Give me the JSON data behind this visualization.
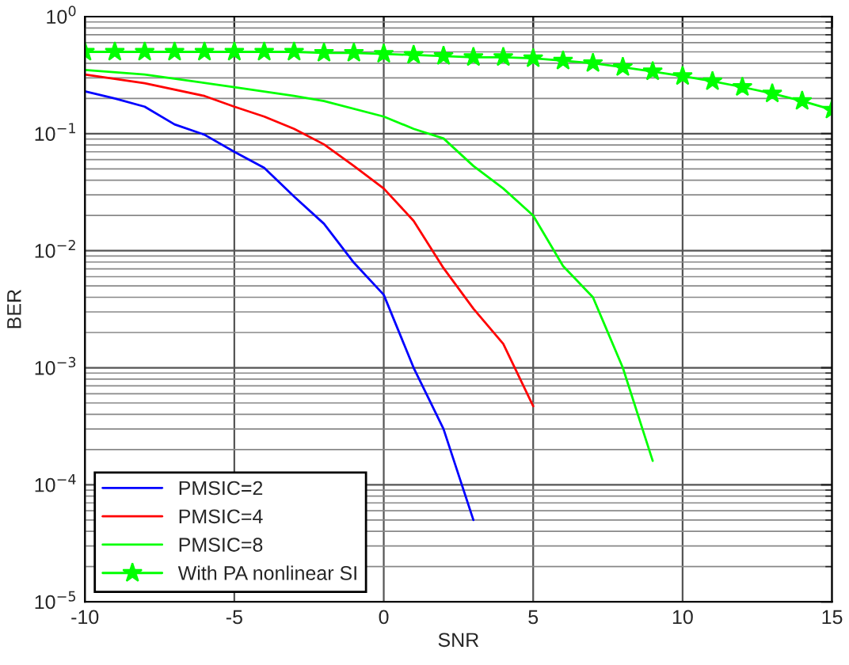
{
  "chart_data": {
    "type": "line",
    "xlabel": "SNR",
    "ylabel": "BER",
    "xlim": [
      -10,
      15
    ],
    "xticks": [
      -10,
      -5,
      0,
      5,
      10,
      15
    ],
    "ylim": [
      1e-05,
      1
    ],
    "yticks": [
      {
        "value": 1e-05,
        "label": "10$^{−5}$"
      },
      {
        "value": 0.0001,
        "label": "10$^{−4}$"
      },
      {
        "value": 0.001,
        "label": "10$^{−3}$"
      },
      {
        "value": 0.01,
        "label": "10$^{−2}$"
      },
      {
        "value": 0.1,
        "label": "10$^{−1}$"
      },
      {
        "value": 1,
        "label": "10$^{0}$"
      }
    ],
    "log": "y",
    "grid": true,
    "legend": "bottom left",
    "line_style": "solid",
    "series": [
      {
        "name": "PMSIC=2",
        "color": "#0000ff",
        "marker": "none",
        "x": [
          -10,
          -9,
          -8,
          -7,
          -6,
          -5,
          -4,
          -3,
          -2,
          -1,
          0,
          1,
          2,
          3
        ],
        "values": [
          0.23,
          0.2,
          0.17,
          0.12,
          0.098,
          0.07,
          0.051,
          0.029,
          0.017,
          0.0079,
          0.0042,
          0.001,
          0.0003,
          5e-05
        ]
      },
      {
        "name": "PMSIC=4",
        "color": "#ff0000",
        "marker": "none",
        "x": [
          -10,
          -8,
          -6,
          -5,
          -4,
          -3,
          -2,
          -1,
          0,
          1,
          2,
          3,
          4,
          5
        ],
        "values": [
          0.32,
          0.27,
          0.21,
          0.17,
          0.14,
          0.11,
          0.081,
          0.053,
          0.034,
          0.018,
          0.0071,
          0.0032,
          0.0016,
          0.00047
        ]
      },
      {
        "name": "PMSIC=8",
        "color": "#00ff00",
        "marker": "none",
        "x": [
          -10,
          -8,
          -5,
          -3,
          -2,
          0,
          1,
          2,
          3,
          4,
          5,
          6,
          7,
          8,
          9
        ],
        "values": [
          0.35,
          0.32,
          0.25,
          0.21,
          0.19,
          0.14,
          0.11,
          0.091,
          0.053,
          0.034,
          0.02,
          0.0074,
          0.004,
          0.001,
          0.00016
        ]
      },
      {
        "name": "With PA nonlinear SI",
        "color": "#00ff00",
        "marker": "star",
        "x": [
          -10,
          -9,
          -8,
          -7,
          -6,
          -5,
          -4,
          -3,
          -2,
          -1,
          0,
          1,
          2,
          3,
          4,
          5,
          6,
          7,
          8,
          9,
          10,
          11,
          12,
          13,
          14,
          15
        ],
        "values": [
          0.5,
          0.5,
          0.5,
          0.5,
          0.5,
          0.5,
          0.5,
          0.5,
          0.49,
          0.49,
          0.48,
          0.47,
          0.46,
          0.45,
          0.45,
          0.44,
          0.42,
          0.4,
          0.37,
          0.34,
          0.31,
          0.28,
          0.25,
          0.22,
          0.19,
          0.16
        ]
      }
    ]
  }
}
